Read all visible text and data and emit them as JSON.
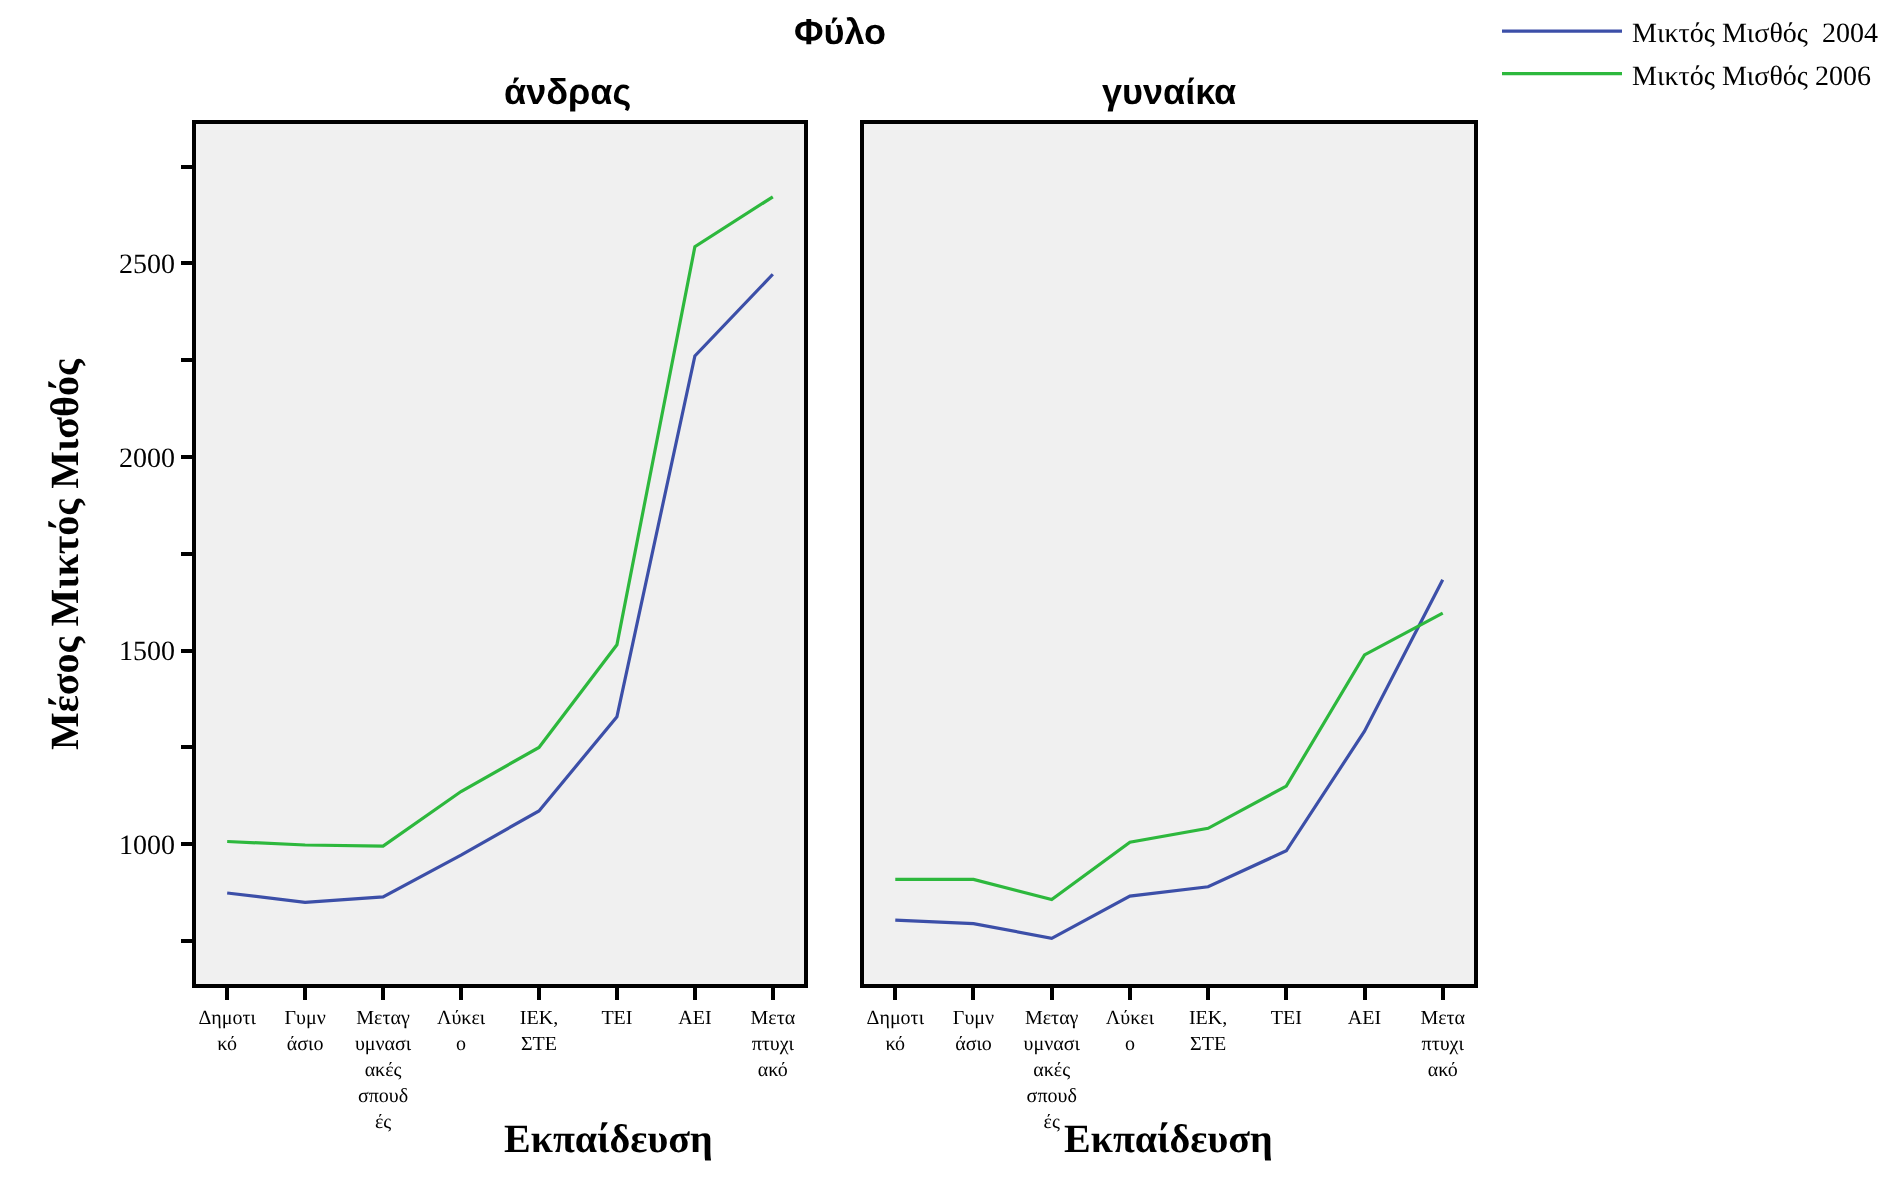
{
  "chart_data": [
    {
      "type": "line",
      "title": "άνδρας",
      "annotations": [
        "Φύλο"
      ],
      "xlabel": "Εκπαίδευση",
      "ylabel": "Μέσος Μικτός Μισθός",
      "categories": [
        "Δημοτι\nκό",
        "Γυμν\nάσιο",
        "Μεταγ\nυμνασι\nακές\nσπουδ\nές",
        "Λύκει\nο",
        "ΙΕΚ,\nΣΤΕ",
        "ΤΕΙ",
        "ΑΕΙ",
        "Μετα\nπτυχι\nακό"
      ],
      "series": [
        {
          "name": "Μικτός Μισθός  2004",
          "color": "#3c4fa8",
          "values": [
            874,
            850,
            864,
            972,
            1086,
            1329,
            2261,
            2472
          ]
        },
        {
          "name": "Μικτός Μισθός 2006",
          "color": "#2db83d",
          "values": [
            1007,
            998,
            995,
            1136,
            1250,
            1515,
            2543,
            2672
          ]
        }
      ],
      "ylim": [
        639,
        2860
      ],
      "yticks": [
        {
          "value": 750,
          "label": null
        },
        1000,
        {
          "value": 1250,
          "label": null
        },
        1500,
        {
          "value": 1750,
          "label": null
        },
        2000,
        {
          "value": 2250,
          "label": null
        },
        2500,
        {
          "value": 2750,
          "label": null
        }
      ],
      "grid": false,
      "legend": "top right",
      "marker": "none",
      "line_style": "solid"
    },
    {
      "type": "line",
      "title": "γυναίκα",
      "xlabel": "Εκπαίδευση",
      "categories": [
        "Δημοτι\nκό",
        "Γυμν\nάσιο",
        "Μεταγ\nυμνασι\nακές\nσπουδ\nές",
        "Λύκει\nο",
        "ΙΕΚ,\nΣΤΕ",
        "ΤΕΙ",
        "ΑΕΙ",
        "Μετα\nπτυχι\nακό"
      ],
      "series": [
        {
          "name": "Μικτός Μισθός  2004",
          "color": "#3c4fa8",
          "values": [
            804,
            795,
            757,
            866,
            890,
            983,
            1292,
            1683
          ]
        },
        {
          "name": "Μικτός Μισθός 2006",
          "color": "#2db83d",
          "values": [
            909,
            909,
            857,
            1005,
            1041,
            1150,
            1489,
            1597
          ]
        }
      ],
      "ylim": [
        639,
        2860
      ],
      "tick_labels": "x",
      "grid": false,
      "legend": "top right",
      "marker": "none",
      "line_style": "solid"
    }
  ]
}
